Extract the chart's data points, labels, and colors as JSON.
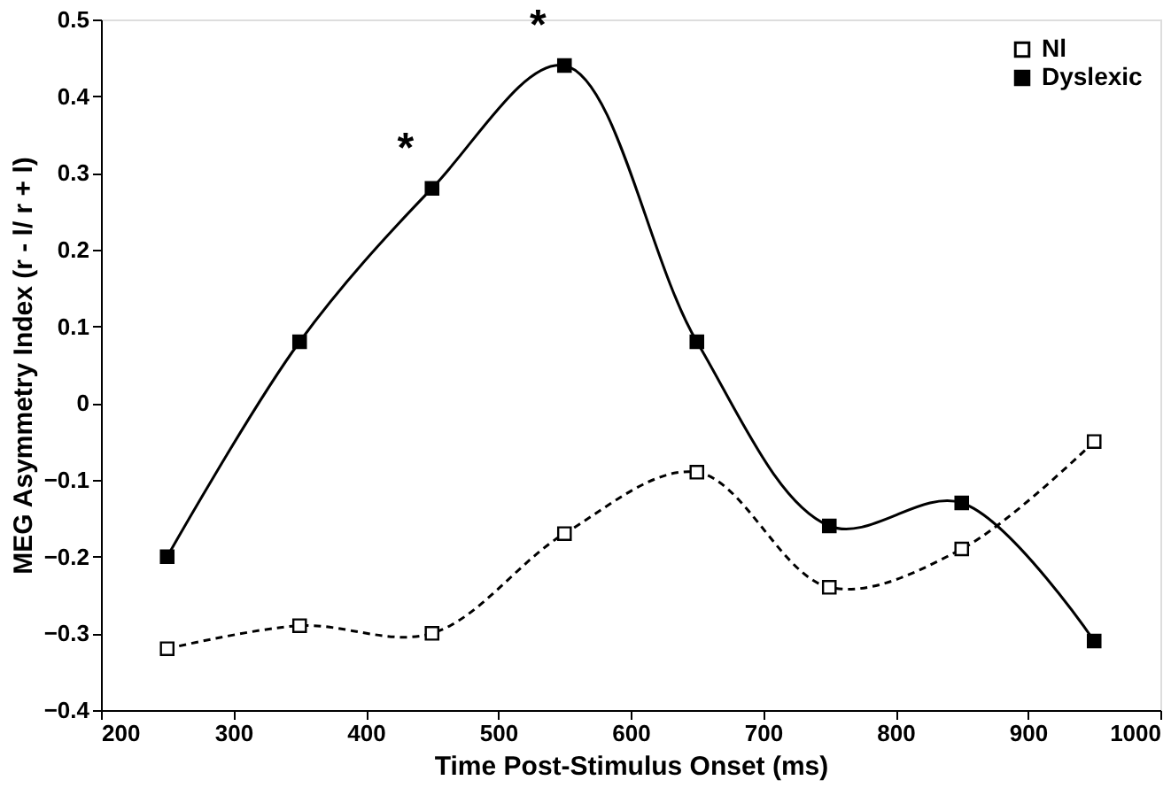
{
  "chart_data": {
    "type": "line",
    "xlabel": "Time Post-Stimulus Onset (ms)",
    "ylabel": "MEG Asymmetry Index (r - l/ r + l)",
    "x": [
      250,
      350,
      450,
      550,
      650,
      750,
      850,
      950
    ],
    "series": [
      {
        "name": "Nl",
        "color": "#000000",
        "line_style": "dashed",
        "values": [
          -0.32,
          -0.29,
          -0.3,
          -0.17,
          -0.09,
          -0.24,
          -0.19,
          -0.05
        ]
      },
      {
        "name": "Dyslexic",
        "color": "#000000",
        "line_style": "solid",
        "values": [
          -0.2,
          0.08,
          0.28,
          0.44,
          0.08,
          -0.16,
          -0.13,
          -0.31
        ]
      }
    ],
    "annotations": [
      {
        "text": "*",
        "x": 450,
        "y": 0.28
      },
      {
        "text": "*",
        "x": 550,
        "y": 0.44
      }
    ],
    "xlim": [
      200,
      1000
    ],
    "xticks": [
      200,
      300,
      400,
      500,
      600,
      700,
      800,
      900,
      1000
    ],
    "ylim": [
      -0.4,
      0.5
    ],
    "yticks": [
      -0.4,
      -0.3,
      -0.2,
      -0.1,
      0,
      0.1,
      0.2,
      0.3,
      0.4,
      0.5
    ],
    "marker": "square",
    "grid": false,
    "legend": "top right"
  }
}
